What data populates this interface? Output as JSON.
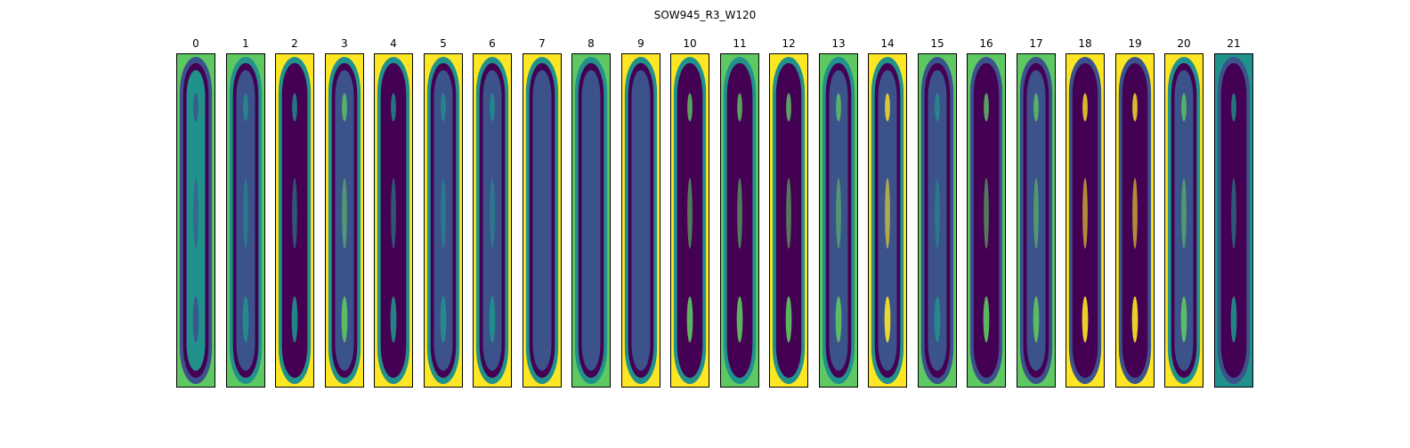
{
  "figure": {
    "title": "SOW945_R3_W120",
    "colormap": [
      "#440154",
      "#3b528b",
      "#21918c",
      "#5ec962",
      "#fde725"
    ],
    "panels": [
      {
        "label": "0",
        "corner": "#5ec962",
        "ring": "#3b528b",
        "core": "#21918c",
        "streak": "#3b528b"
      },
      {
        "label": "1",
        "corner": "#5ec962",
        "ring": "#21918c",
        "core": "#3b528b",
        "streak": "#21918c"
      },
      {
        "label": "2",
        "corner": "#fde725",
        "ring": "#21918c",
        "core": "#440154",
        "streak": "#21918c"
      },
      {
        "label": "3",
        "corner": "#fde725",
        "ring": "#21918c",
        "core": "#3b528b",
        "streak": "#5ec962"
      },
      {
        "label": "4",
        "corner": "#fde725",
        "ring": "#21918c",
        "core": "#440154",
        "streak": "#21918c"
      },
      {
        "label": "5",
        "corner": "#fde725",
        "ring": "#21918c",
        "core": "#3b528b",
        "streak": "#21918c"
      },
      {
        "label": "6",
        "corner": "#fde725",
        "ring": "#21918c",
        "core": "#3b528b",
        "streak": "#21918c"
      },
      {
        "label": "7",
        "corner": "#fde725",
        "ring": "#21918c",
        "core": "#3b528b",
        "streak": "#3b528b"
      },
      {
        "label": "8",
        "corner": "#5ec962",
        "ring": "#21918c",
        "core": "#3b528b",
        "streak": "#3b528b"
      },
      {
        "label": "9",
        "corner": "#fde725",
        "ring": "#21918c",
        "core": "#3b528b",
        "streak": "#3b528b"
      },
      {
        "label": "10",
        "corner": "#fde725",
        "ring": "#21918c",
        "core": "#440154",
        "streak": "#5ec962"
      },
      {
        "label": "11",
        "corner": "#5ec962",
        "ring": "#21918c",
        "core": "#440154",
        "streak": "#5ec962"
      },
      {
        "label": "12",
        "corner": "#fde725",
        "ring": "#21918c",
        "core": "#440154",
        "streak": "#5ec962"
      },
      {
        "label": "13",
        "corner": "#5ec962",
        "ring": "#21918c",
        "core": "#3b528b",
        "streak": "#5ec962"
      },
      {
        "label": "14",
        "corner": "#fde725",
        "ring": "#21918c",
        "core": "#3b528b",
        "streak": "#fde725"
      },
      {
        "label": "15",
        "corner": "#5ec962",
        "ring": "#3b528b",
        "core": "#3b528b",
        "streak": "#21918c"
      },
      {
        "label": "16",
        "corner": "#5ec962",
        "ring": "#3b528b",
        "core": "#440154",
        "streak": "#5ec962"
      },
      {
        "label": "17",
        "corner": "#5ec962",
        "ring": "#3b528b",
        "core": "#3b528b",
        "streak": "#5ec962"
      },
      {
        "label": "18",
        "corner": "#fde725",
        "ring": "#3b528b",
        "core": "#440154",
        "streak": "#fde725"
      },
      {
        "label": "19",
        "corner": "#fde725",
        "ring": "#3b528b",
        "core": "#440154",
        "streak": "#fde725"
      },
      {
        "label": "20",
        "corner": "#fde725",
        "ring": "#21918c",
        "core": "#3b528b",
        "streak": "#5ec962"
      },
      {
        "label": "21",
        "corner": "#21918c",
        "ring": "#3b528b",
        "core": "#440154",
        "streak": "#21918c"
      }
    ]
  }
}
